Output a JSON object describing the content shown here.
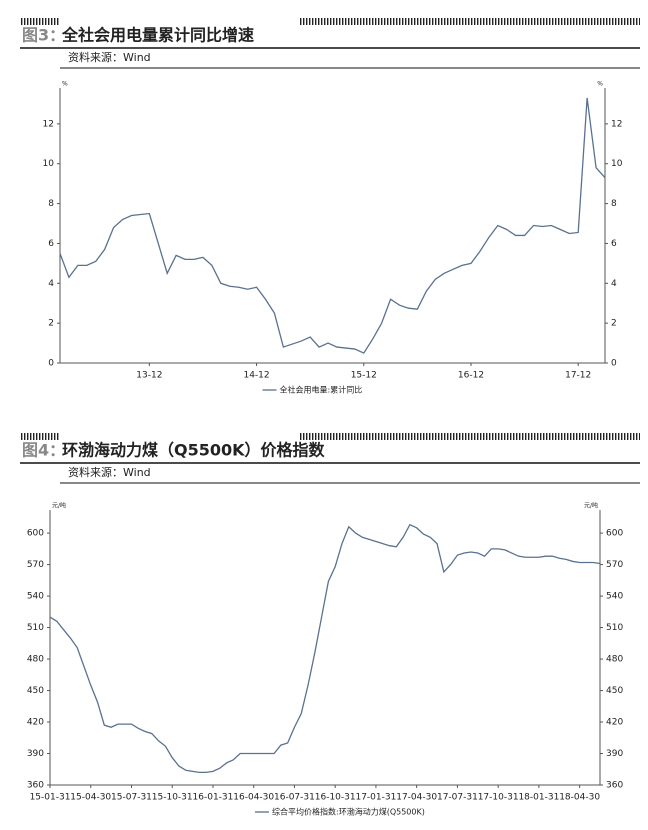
{
  "chart_data": [
    {
      "type": "line",
      "figure_label": "图3：",
      "title": "全社会用电量累计同比增速",
      "source": "资料来源：Wind",
      "y_unit": "%",
      "mirror_y_axis": true,
      "categories": [
        null,
        null,
        null,
        null,
        null,
        null,
        null,
        null,
        null,
        null,
        "13-12",
        null,
        null,
        null,
        null,
        null,
        null,
        null,
        null,
        null,
        null,
        null,
        "14-12",
        null,
        null,
        null,
        null,
        null,
        null,
        null,
        null,
        null,
        null,
        null,
        "15-12",
        null,
        null,
        null,
        null,
        null,
        null,
        null,
        null,
        null,
        null,
        null,
        "16-12",
        null,
        null,
        null,
        null,
        null,
        null,
        null,
        null,
        null,
        null,
        null,
        "17-12",
        null,
        null,
        null
      ],
      "series": [
        {
          "name": "全社会用电量:累计同比",
          "color": "#5a7190",
          "values": [
            5.5,
            4.3,
            4.9,
            4.9,
            5.1,
            5.7,
            6.8,
            7.2,
            7.4,
            7.45,
            7.5,
            6.0,
            4.5,
            5.4,
            5.2,
            5.2,
            5.3,
            4.9,
            4.0,
            3.85,
            3.8,
            3.7,
            3.8,
            3.2,
            2.5,
            0.8,
            0.95,
            1.1,
            1.3,
            0.8,
            1.0,
            0.8,
            0.75,
            0.7,
            0.5,
            1.2,
            2.0,
            3.2,
            2.9,
            2.75,
            2.7,
            3.6,
            4.2,
            4.5,
            4.7,
            4.9,
            5.0,
            5.6,
            6.3,
            6.9,
            6.7,
            6.4,
            6.4,
            6.9,
            6.85,
            6.9,
            6.7,
            6.5,
            6.55,
            13.3,
            9.8,
            9.3
          ]
        }
      ],
      "ylim": [
        0,
        13.8
      ],
      "yticks": [
        0,
        2,
        4,
        6,
        8,
        10,
        12
      ]
    },
    {
      "type": "line",
      "figure_label": "图4：",
      "title": "环渤海动力煤（Q5500K）价格指数",
      "source": "资料来源：Wind",
      "y_unit": "元/吨",
      "mirror_y_axis": true,
      "categories": [
        "15-01-31",
        null,
        null,
        null,
        null,
        null,
        "15-04-30",
        null,
        null,
        null,
        null,
        null,
        "15-07-31",
        null,
        null,
        null,
        null,
        null,
        "15-10-31",
        null,
        null,
        null,
        null,
        null,
        "16-01-31",
        null,
        null,
        null,
        null,
        null,
        "16-04-30",
        null,
        null,
        null,
        null,
        null,
        "16-07-31",
        null,
        null,
        null,
        null,
        null,
        "16-10-31",
        null,
        null,
        null,
        null,
        null,
        "17-01-31",
        null,
        null,
        null,
        null,
        null,
        "17-04-30",
        null,
        null,
        null,
        null,
        null,
        "17-07-31",
        null,
        null,
        null,
        null,
        null,
        "17-10-31",
        null,
        null,
        null,
        null,
        null,
        "18-01-31",
        null,
        null,
        null,
        null,
        null,
        "18-04-30",
        null,
        null,
        null
      ],
      "series": [
        {
          "name": "综合平均价格指数:环渤海动力煤(Q5500K)",
          "color": "#5a7190",
          "values": [
            520,
            516,
            508,
            500,
            491,
            473,
            455,
            439,
            417,
            415,
            418,
            418,
            418,
            414,
            411,
            409,
            402,
            397,
            386,
            378,
            374,
            373,
            372,
            372,
            373,
            376,
            381,
            384,
            390,
            390,
            390,
            390,
            390,
            390,
            398,
            400,
            415,
            428,
            455,
            486,
            520,
            554,
            568,
            590,
            606,
            600,
            596,
            594,
            592,
            590,
            588,
            587,
            596,
            608,
            605,
            599,
            596,
            590,
            563,
            570,
            579,
            581,
            582,
            581,
            578,
            585,
            585,
            584,
            581,
            578,
            577,
            577,
            577,
            578,
            578,
            576,
            575,
            573,
            572,
            572,
            572,
            571
          ]
        }
      ],
      "ylim": [
        360,
        622
      ],
      "yticks": [
        360,
        390,
        420,
        450,
        480,
        510,
        540,
        570,
        600
      ]
    }
  ]
}
